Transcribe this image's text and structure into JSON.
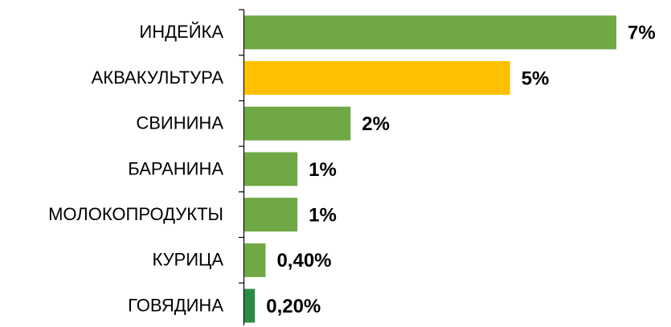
{
  "chart_data": {
    "type": "bar",
    "orientation": "horizontal",
    "categories": [
      "ИНДЕЙКА",
      "АКВАКУЛЬТУРА",
      "СВИНИНА",
      "БАРАНИНА",
      "МОЛОКОПРОДУКТЫ",
      "КУРИЦА",
      "ГОВЯДИНА"
    ],
    "values": [
      7,
      5,
      2,
      1,
      1,
      0.4,
      0.2
    ],
    "value_labels": [
      "7%",
      "5%",
      "2%",
      "1%",
      "1%",
      "0,40%",
      "0,20%"
    ],
    "colors": [
      "#70a845",
      "#ffc000",
      "#70a845",
      "#70a845",
      "#70a845",
      "#70a845",
      "#2e8b45"
    ]
  }
}
